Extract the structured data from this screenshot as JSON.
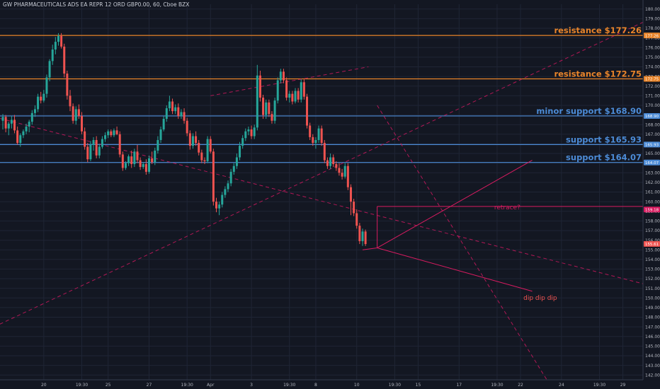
{
  "header": {
    "title": "GW PHARMACEUTICALS ADS EA REPR 12 ORD GBP0.00, 60, Cboe BZX"
  },
  "colors": {
    "background": "#131722",
    "up": "#26a69a",
    "down": "#ef5350",
    "resistance": "#e8842a",
    "support": "#4c8bd6",
    "trend": "#c2185b",
    "axis_text": "#b2b5be",
    "grid": "#1f2535",
    "annotation": "#d81b60",
    "price_label": "#ef5350"
  },
  "chart_data": {
    "type": "candlestick",
    "title": "GW PHARMACEUTICALS ADS EA REPR 12 ORD GBP0.00, 60, Cboe BZX",
    "ylim": [
      141.5,
      180.5
    ],
    "y_ticks": [
      "142.00",
      "143.00",
      "144.00",
      "145.00",
      "146.00",
      "147.00",
      "148.00",
      "149.00",
      "150.00",
      "151.00",
      "152.00",
      "153.00",
      "154.00",
      "155.00",
      "156.00",
      "157.00",
      "158.00",
      "159.00",
      "160.00",
      "161.00",
      "162.00",
      "163.00",
      "164.00",
      "165.00",
      "166.00",
      "167.00",
      "168.00",
      "169.00",
      "170.00",
      "171.00",
      "172.00",
      "173.00",
      "174.00",
      "175.00",
      "176.00",
      "177.00",
      "178.00",
      "179.00",
      "180.00"
    ],
    "x_ticks": [
      {
        "label": "20",
        "bar": 14
      },
      {
        "label": "19:30",
        "bar": 27
      },
      {
        "label": "25",
        "bar": 36
      },
      {
        "label": "27",
        "bar": 50
      },
      {
        "label": "19:30",
        "bar": 63
      },
      {
        "label": "Apr",
        "bar": 71
      },
      {
        "label": "3",
        "bar": 85
      },
      {
        "label": "19:30",
        "bar": 98
      },
      {
        "label": "8",
        "bar": 107
      },
      {
        "label": "10",
        "bar": 121
      },
      {
        "label": "19:30",
        "bar": 134
      },
      {
        "label": "15",
        "bar": 142
      },
      {
        "label": "17",
        "bar": 156
      },
      {
        "label": "19:30",
        "bar": 169
      },
      {
        "label": "22",
        "bar": 177
      },
      {
        "label": "24",
        "bar": 191
      },
      {
        "label": "19:30",
        "bar": 204
      },
      {
        "label": "29",
        "bar": 212
      }
    ],
    "series": [
      {
        "candles": [
          [
            168.4,
            169.1,
            167.5,
            168.8
          ],
          [
            168.8,
            169.0,
            167.2,
            167.6
          ],
          [
            167.6,
            168.3,
            166.9,
            168.1
          ],
          [
            168.1,
            168.9,
            167.6,
            168.5
          ],
          [
            168.5,
            169.0,
            167.1,
            167.4
          ],
          [
            167.4,
            167.8,
            165.9,
            166.1
          ],
          [
            166.1,
            167.1,
            165.7,
            166.9
          ],
          [
            166.9,
            167.5,
            166.6,
            167.3
          ],
          [
            167.3,
            168.1,
            167.0,
            167.8
          ],
          [
            167.8,
            168.5,
            167.2,
            168.3
          ],
          [
            168.3,
            169.5,
            168.0,
            169.2
          ],
          [
            169.2,
            170.0,
            168.8,
            169.6
          ],
          [
            169.6,
            171.2,
            169.3,
            170.9
          ],
          [
            170.9,
            171.4,
            170.2,
            170.5
          ],
          [
            170.5,
            171.6,
            170.3,
            171.2
          ],
          [
            171.2,
            173.2,
            170.8,
            172.9
          ],
          [
            172.9,
            174.8,
            172.5,
            174.6
          ],
          [
            174.6,
            176.3,
            174.2,
            175.8
          ],
          [
            175.8,
            177.1,
            175.3,
            176.6
          ],
          [
            176.6,
            177.5,
            176.2,
            177.2
          ],
          [
            177.2,
            177.5,
            175.9,
            176.1
          ],
          [
            176.1,
            176.4,
            172.9,
            173.3
          ],
          [
            173.3,
            173.6,
            170.6,
            171.0
          ],
          [
            171.0,
            171.6,
            169.4,
            169.9
          ],
          [
            169.9,
            170.2,
            168.1,
            168.4
          ],
          [
            168.4,
            169.9,
            168.0,
            169.6
          ],
          [
            169.6,
            170.1,
            168.6,
            168.9
          ],
          [
            168.9,
            169.3,
            167.0,
            167.3
          ],
          [
            167.3,
            167.7,
            165.4,
            165.7
          ],
          [
            165.7,
            166.1,
            164.1,
            164.4
          ],
          [
            164.4,
            166.3,
            164.2,
            165.9
          ],
          [
            165.9,
            166.7,
            165.3,
            166.4
          ],
          [
            166.4,
            166.8,
            164.5,
            164.8
          ],
          [
            164.8,
            166.0,
            164.5,
            165.7
          ],
          [
            165.7,
            166.8,
            165.5,
            166.5
          ],
          [
            166.5,
            167.2,
            166.2,
            166.9
          ],
          [
            166.9,
            167.5,
            166.6,
            167.3
          ],
          [
            167.3,
            167.5,
            166.7,
            166.9
          ],
          [
            166.9,
            167.6,
            166.7,
            167.4
          ],
          [
            167.4,
            167.8,
            166.9,
            167.0
          ],
          [
            167.0,
            167.3,
            164.6,
            164.9
          ],
          [
            164.9,
            165.2,
            163.2,
            163.5
          ],
          [
            163.5,
            164.2,
            163.3,
            164.0
          ],
          [
            164.0,
            164.9,
            163.7,
            164.7
          ],
          [
            164.7,
            165.3,
            163.5,
            163.9
          ],
          [
            163.9,
            165.5,
            163.6,
            165.2
          ],
          [
            165.2,
            165.9,
            164.0,
            164.3
          ],
          [
            164.3,
            164.6,
            163.3,
            163.6
          ],
          [
            163.6,
            164.1,
            163.4,
            163.9
          ],
          [
            163.9,
            164.4,
            162.8,
            163.1
          ],
          [
            163.1,
            164.8,
            162.9,
            164.5
          ],
          [
            164.5,
            165.2,
            163.9,
            164.1
          ],
          [
            164.1,
            165.6,
            163.8,
            165.3
          ],
          [
            165.3,
            166.8,
            165.0,
            166.4
          ],
          [
            166.4,
            167.8,
            166.1,
            167.5
          ],
          [
            167.5,
            168.9,
            167.3,
            168.6
          ],
          [
            168.6,
            170.0,
            168.3,
            169.7
          ],
          [
            169.7,
            171.0,
            169.4,
            170.4
          ],
          [
            170.4,
            170.7,
            169.1,
            169.4
          ],
          [
            169.4,
            170.1,
            169.1,
            169.8
          ],
          [
            169.8,
            170.2,
            168.6,
            168.9
          ],
          [
            168.9,
            169.6,
            168.6,
            169.3
          ],
          [
            169.3,
            169.7,
            168.1,
            168.4
          ],
          [
            168.4,
            168.7,
            166.8,
            167.1
          ],
          [
            167.1,
            167.4,
            165.4,
            165.8
          ],
          [
            165.8,
            167.1,
            165.5,
            166.8
          ],
          [
            166.8,
            167.3,
            165.8,
            166.1
          ],
          [
            166.1,
            166.4,
            164.8,
            165.1
          ],
          [
            165.1,
            165.4,
            164.0,
            164.3
          ],
          [
            164.3,
            164.6,
            163.9,
            164.2
          ],
          [
            164.2,
            166.8,
            164.0,
            166.5
          ],
          [
            166.5,
            166.8,
            165.0,
            165.2
          ],
          [
            165.2,
            165.5,
            159.6,
            160.0
          ],
          [
            160.0,
            160.4,
            158.9,
            159.3
          ],
          [
            159.3,
            160.0,
            158.6,
            159.7
          ],
          [
            159.7,
            161.0,
            159.4,
            160.7
          ],
          [
            160.7,
            161.6,
            160.4,
            161.3
          ],
          [
            161.3,
            162.2,
            161.0,
            161.9
          ],
          [
            161.9,
            163.4,
            161.6,
            163.1
          ],
          [
            163.1,
            164.0,
            162.8,
            163.7
          ],
          [
            163.7,
            165.0,
            163.4,
            164.6
          ],
          [
            164.6,
            166.2,
            164.3,
            165.8
          ],
          [
            165.8,
            166.9,
            165.5,
            166.6
          ],
          [
            166.6,
            167.6,
            166.3,
            167.3
          ],
          [
            167.3,
            167.8,
            166.9,
            167.5
          ],
          [
            167.5,
            167.9,
            166.5,
            166.8
          ],
          [
            166.8,
            168.0,
            166.5,
            167.7
          ],
          [
            167.7,
            174.2,
            167.4,
            173.1
          ],
          [
            173.1,
            173.6,
            170.4,
            170.8
          ],
          [
            170.8,
            171.1,
            168.6,
            169.0
          ],
          [
            169.0,
            170.6,
            168.6,
            170.3
          ],
          [
            170.3,
            170.6,
            168.8,
            169.1
          ],
          [
            169.1,
            169.4,
            168.1,
            168.4
          ],
          [
            168.4,
            170.8,
            168.1,
            170.5
          ],
          [
            170.5,
            172.9,
            170.2,
            172.6
          ],
          [
            172.6,
            173.8,
            172.3,
            173.5
          ],
          [
            173.5,
            173.8,
            172.3,
            172.6
          ],
          [
            172.6,
            172.9,
            170.5,
            170.8
          ],
          [
            170.8,
            171.5,
            170.3,
            171.2
          ],
          [
            171.2,
            171.5,
            170.1,
            170.4
          ],
          [
            170.4,
            171.8,
            170.2,
            171.5
          ],
          [
            171.5,
            171.8,
            170.3,
            170.6
          ],
          [
            170.6,
            172.7,
            170.3,
            172.4
          ],
          [
            172.4,
            172.7,
            170.6,
            170.9
          ],
          [
            170.9,
            171.2,
            167.6,
            167.9
          ],
          [
            167.9,
            168.2,
            166.4,
            166.7
          ],
          [
            166.7,
            167.0,
            165.8,
            166.1
          ],
          [
            166.1,
            166.7,
            165.5,
            166.4
          ],
          [
            166.4,
            167.9,
            166.1,
            167.6
          ],
          [
            167.6,
            167.9,
            165.8,
            166.1
          ],
          [
            166.1,
            166.4,
            164.0,
            164.3
          ],
          [
            164.3,
            164.6,
            163.4,
            163.7
          ],
          [
            163.7,
            165.0,
            163.4,
            164.6
          ],
          [
            164.6,
            164.9,
            163.6,
            163.9
          ],
          [
            163.9,
            164.2,
            163.2,
            163.5
          ],
          [
            163.5,
            164.0,
            162.7,
            163.0
          ],
          [
            163.0,
            163.4,
            162.3,
            162.6
          ],
          [
            162.6,
            164.0,
            162.4,
            163.7
          ],
          [
            163.7,
            164.0,
            161.2,
            161.5
          ],
          [
            161.5,
            161.8,
            158.6,
            160.0
          ],
          [
            160.0,
            160.3,
            158.5,
            158.8
          ],
          [
            158.8,
            159.2,
            157.2,
            157.5
          ],
          [
            157.5,
            157.8,
            155.6,
            155.9
          ],
          [
            155.9,
            157.2,
            155.4,
            156.9
          ],
          [
            156.9,
            157.1,
            155.4,
            155.6
          ]
        ]
      }
    ],
    "levels": [
      {
        "label": "resistance $177.26",
        "price": 177.26,
        "kind": "resistance",
        "tag": "177.26"
      },
      {
        "label": "resistance $172.75",
        "price": 172.75,
        "kind": "resistance",
        "tag": "172.75"
      },
      {
        "label": "minor support $168.90",
        "price": 168.9,
        "kind": "support",
        "tag": "168.90"
      },
      {
        "label": "support $165.93",
        "price": 165.93,
        "kind": "support",
        "tag": "165.93"
      },
      {
        "label": "support $164.07",
        "price": 164.07,
        "kind": "support",
        "tag": "164.07"
      }
    ],
    "trendlines": [
      {
        "from": [
          -3,
          147.0
        ],
        "to": [
          225,
          179.5
        ]
      },
      {
        "from": [
          -3,
          168.8
        ],
        "to": [
          225,
          151.0
        ]
      },
      {
        "from": [
          71,
          171.0
        ],
        "to": [
          125,
          174.0
        ]
      },
      {
        "from": [
          128,
          170.0
        ],
        "to": [
          186,
          141.5
        ]
      }
    ],
    "annotations": [
      {
        "text": "retrace?",
        "at": [
          168,
          159.2
        ],
        "color": "annotation"
      },
      {
        "text": "dip dip dip",
        "at": [
          178,
          149.8
        ],
        "color": "price_label"
      }
    ],
    "current_price": "155.61",
    "target_tag": "159.18"
  }
}
